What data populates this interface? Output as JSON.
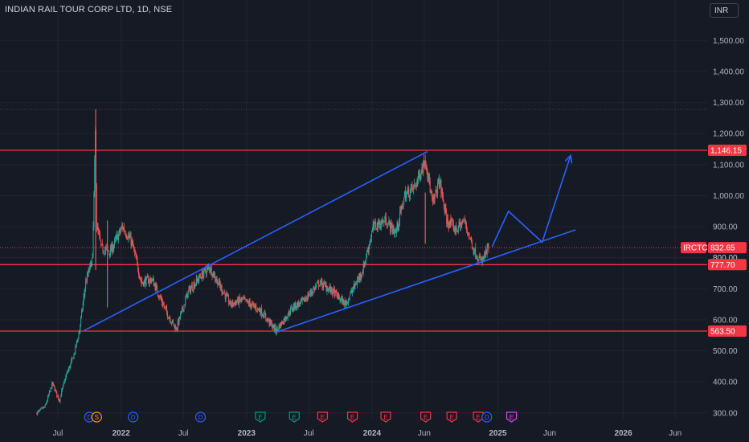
{
  "header": {
    "title": "INDIAN RAIL TOUR CORP LTD, 1D, NSE",
    "currency_button": "INR"
  },
  "colors": {
    "background": "#161a25",
    "grid": "#1f2430",
    "up_candle": "#26a69a",
    "down_candle": "#ef5350",
    "level_line": "#f23645",
    "trend_line": "#2962ff",
    "label_bg": "#f23645"
  },
  "chart_data": {
    "type": "candlestick",
    "symbol": "IRCTC",
    "interval": "1D",
    "exchange": "NSE",
    "y_axis": {
      "range": [
        290,
        1550
      ],
      "ticks": [
        300,
        400,
        500,
        600,
        700,
        800,
        900,
        1000,
        1100,
        1200,
        1300,
        1400,
        1500
      ],
      "tick_labels": [
        "300.00",
        "400.00",
        "500.00",
        "600.00",
        "700.00",
        "800.00",
        "900.00",
        "1,000.00",
        "1,100.00",
        "1,200.00",
        "1,300.00",
        "1,400.00",
        "1,500.00"
      ]
    },
    "x_axis": {
      "range": [
        "2021-05-01",
        "2026-08-15"
      ],
      "ticks": [
        "2021-07-01",
        "2022-01-01",
        "2022-07-01",
        "2023-01-01",
        "2023-07-01",
        "2024-01-01",
        "2024-06-01",
        "2025-01-01",
        "2025-06-01",
        "2026-01-01",
        "2026-06-01"
      ],
      "tick_labels": [
        "Jul",
        "2022",
        "Jul",
        "2023",
        "Jul",
        "2024",
        "Jun",
        "2025",
        "Jun",
        "2026",
        "Jun"
      ],
      "bold_ticks": [
        "2022",
        "2023",
        "2024",
        "2025",
        "2026"
      ]
    },
    "price_path": [
      [
        "2021-05-01",
        300
      ],
      [
        "2021-05-25",
        320
      ],
      [
        "2021-06-15",
        395
      ],
      [
        "2021-07-05",
        340
      ],
      [
        "2021-07-25",
        420
      ],
      [
        "2021-08-15",
        480
      ],
      [
        "2021-09-01",
        560
      ],
      [
        "2021-09-20",
        720
      ],
      [
        "2021-10-10",
        800
      ],
      [
        "2021-10-18",
        1200
      ],
      [
        "2021-10-22",
        900
      ],
      [
        "2021-11-05",
        830
      ],
      [
        "2021-12-01",
        820
      ],
      [
        "2022-01-05",
        900
      ],
      [
        "2022-02-01",
        850
      ],
      [
        "2022-03-01",
        720
      ],
      [
        "2022-04-01",
        730
      ],
      [
        "2022-05-15",
        620
      ],
      [
        "2022-06-10",
        570
      ],
      [
        "2022-07-15",
        690
      ],
      [
        "2022-08-20",
        740
      ],
      [
        "2022-09-15",
        770
      ],
      [
        "2022-10-15",
        710
      ],
      [
        "2022-11-15",
        650
      ],
      [
        "2022-12-20",
        665
      ],
      [
        "2023-02-10",
        630
      ],
      [
        "2023-03-28",
        565
      ],
      [
        "2023-05-15",
        640
      ],
      [
        "2023-06-15",
        660
      ],
      [
        "2023-08-01",
        720
      ],
      [
        "2023-09-10",
        690
      ],
      [
        "2023-10-15",
        650
      ],
      [
        "2023-12-05",
        760
      ],
      [
        "2024-01-05",
        900
      ],
      [
        "2024-02-10",
        920
      ],
      [
        "2024-03-10",
        880
      ],
      [
        "2024-04-05",
        1000
      ],
      [
        "2024-05-05",
        1030
      ],
      [
        "2024-06-05",
        1120
      ],
      [
        "2024-06-25",
        970
      ],
      [
        "2024-07-15",
        1050
      ],
      [
        "2024-08-05",
        920
      ],
      [
        "2024-09-01",
        890
      ],
      [
        "2024-09-25",
        920
      ],
      [
        "2024-10-25",
        820
      ],
      [
        "2024-11-14",
        785
      ],
      [
        "2024-12-05",
        832.65
      ]
    ],
    "ohlc_approximate": true,
    "spikes": [
      {
        "date": "2021-10-19",
        "high": 1278,
        "low": 760
      },
      {
        "date": "2021-11-22",
        "high": 920,
        "low": 640
      },
      {
        "date": "2024-06-04",
        "high": 1010,
        "low": 845
      }
    ],
    "horizontal_levels": [
      {
        "price": 1146.15,
        "label": "1,146.15"
      },
      {
        "price": 777.7,
        "label": "777.70"
      },
      {
        "price": 563.5,
        "label": "563.50"
      }
    ],
    "dotted_levels": [
      {
        "price": 1278,
        "color": "#434651"
      },
      {
        "price": 832.65,
        "color": "#f23645"
      }
    ],
    "current_price": {
      "symbol_label": "IRCTC",
      "value": "832.65"
    },
    "hidden_tick_label": "800.00",
    "trend_lines": [
      {
        "from": [
          "2021-09-15",
          565
        ],
        "to": [
          "2024-06-10",
          1142
        ]
      },
      {
        "from": [
          "2023-03-28",
          560
        ],
        "to": [
          "2025-08-15",
          890
        ]
      }
    ],
    "projection_path": [
      [
        "2024-12-15",
        835
      ],
      [
        "2025-02-01",
        950
      ],
      [
        "2025-05-10",
        850
      ],
      [
        "2025-08-01",
        1130
      ]
    ],
    "events": [
      {
        "date": "2021-10-01",
        "letter": "D",
        "color": "#2962ff",
        "shape": "circle"
      },
      {
        "date": "2021-10-22",
        "letter": "S",
        "color": "#ff9800",
        "shape": "circle"
      },
      {
        "date": "2022-02-05",
        "letter": "D",
        "color": "#2962ff",
        "shape": "circle"
      },
      {
        "date": "2022-08-20",
        "letter": "D",
        "color": "#2962ff",
        "shape": "circle"
      },
      {
        "date": "2023-02-10",
        "letter": "E",
        "color": "#089981",
        "shape": "flag"
      },
      {
        "date": "2023-05-20",
        "letter": "E",
        "color": "#089981",
        "shape": "flag"
      },
      {
        "date": "2023-08-10",
        "letter": "E",
        "color": "#f23645",
        "shape": "flag"
      },
      {
        "date": "2023-11-05",
        "letter": "E",
        "color": "#f23645",
        "shape": "flag"
      },
      {
        "date": "2024-02-10",
        "letter": "E",
        "color": "#f23645",
        "shape": "flag"
      },
      {
        "date": "2024-06-05",
        "letter": "E",
        "color": "#f23645",
        "shape": "flag"
      },
      {
        "date": "2024-08-20",
        "letter": "E",
        "color": "#f23645",
        "shape": "flag"
      },
      {
        "date": "2024-11-05",
        "letter": "E",
        "color": "#f23645",
        "shape": "flag"
      },
      {
        "date": "2024-11-30",
        "letter": "D",
        "color": "#2962ff",
        "shape": "circle"
      },
      {
        "date": "2025-02-10",
        "letter": "E",
        "color": "#e040fb",
        "shape": "flag"
      }
    ]
  }
}
